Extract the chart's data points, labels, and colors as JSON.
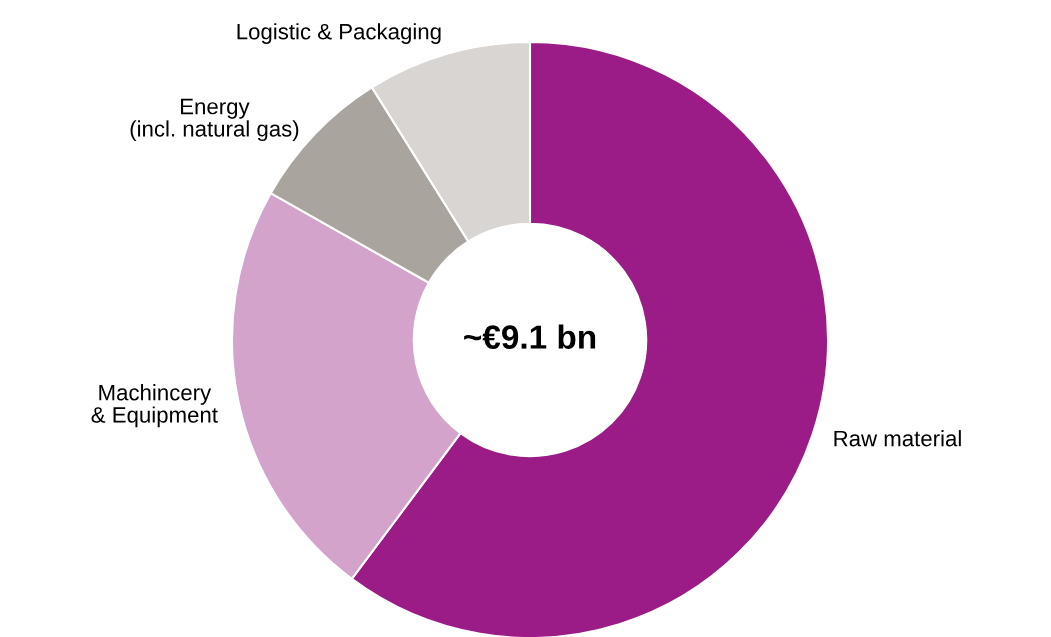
{
  "chart_data": {
    "type": "donut",
    "categories": [
      "Raw material",
      "Machincery\n& Equipment",
      "Energy\n(incl. natural gas)",
      "Logistic & Packaging"
    ],
    "values": [
      60.2,
      23.0,
      7.9,
      8.9
    ],
    "colors": [
      "#9b1c87",
      "#d4a3cc",
      "#a9a49e",
      "#d9d5d2"
    ],
    "annotations": [
      "~€9.1 bn"
    ]
  }
}
